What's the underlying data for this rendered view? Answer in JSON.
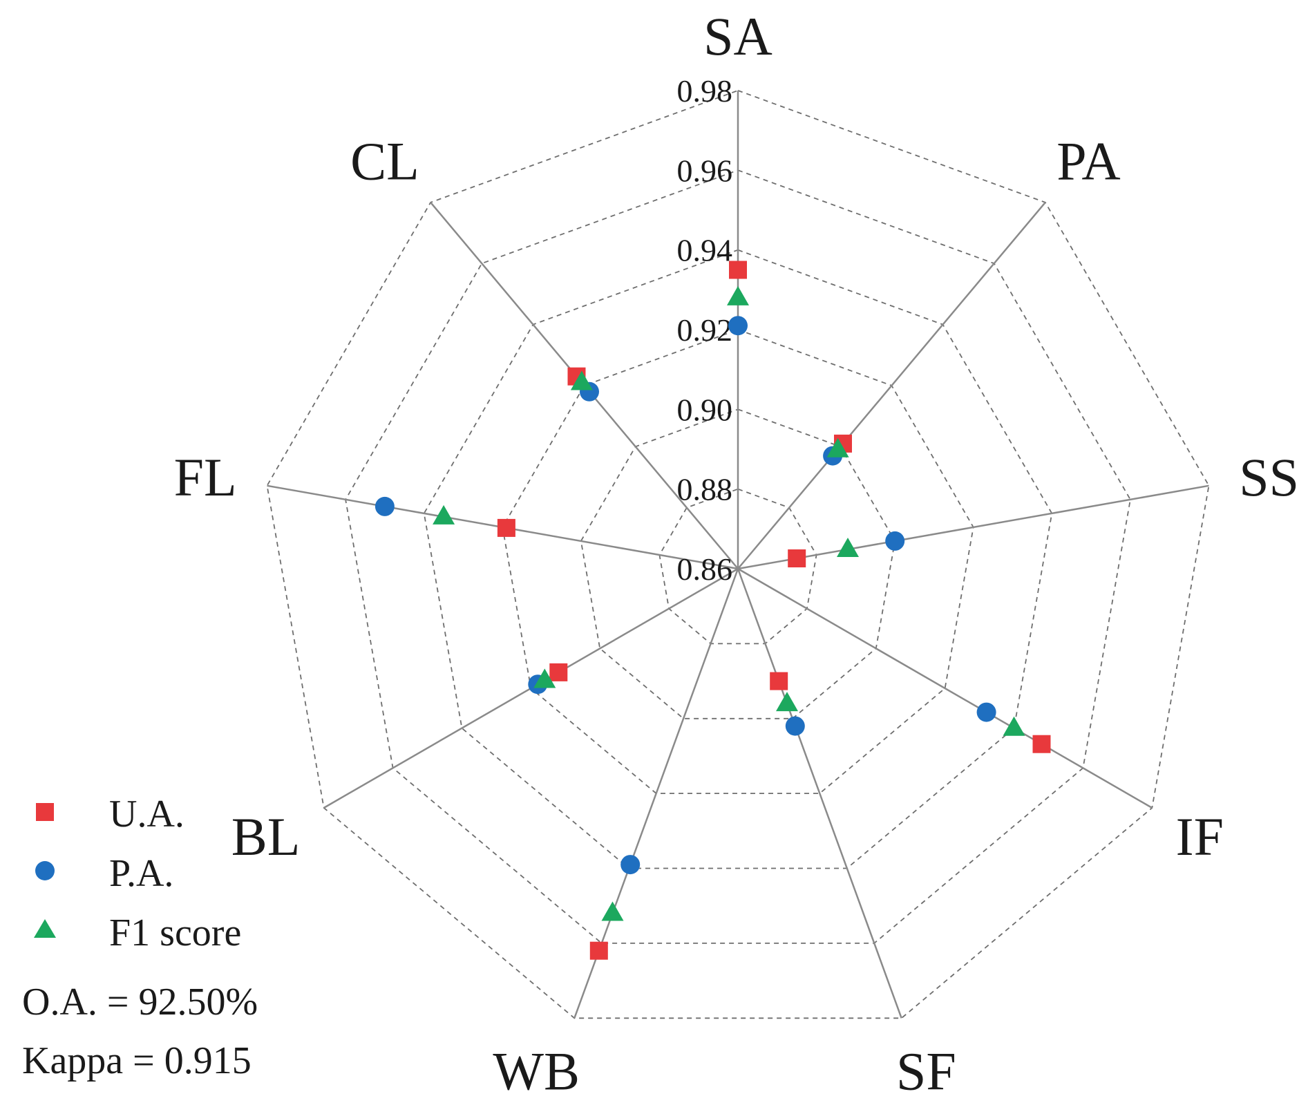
{
  "chart_data": {
    "type": "radar",
    "axes": [
      "SA",
      "PA",
      "SS",
      "IF",
      "SF",
      "WB",
      "BL",
      "FL",
      "CL"
    ],
    "range": [
      0.86,
      0.98
    ],
    "ticks": [
      "0.86",
      "0.88",
      "0.90",
      "0.92",
      "0.94",
      "0.96",
      "0.98"
    ],
    "tick_values": [
      0.86,
      0.88,
      0.9,
      0.92,
      0.94,
      0.96,
      0.98
    ],
    "grid": "dashed",
    "series": [
      {
        "name": "U.A.",
        "marker": "square",
        "color": "#e8393c",
        "values": [
          0.935,
          0.901,
          0.875,
          0.948,
          0.89,
          0.962,
          0.912,
          0.919,
          0.923
        ]
      },
      {
        "name": "P.A.",
        "marker": "circle",
        "color": "#1f6fc0",
        "values": [
          0.921,
          0.897,
          0.9,
          0.932,
          0.902,
          0.939,
          0.918,
          0.95,
          0.918
        ]
      },
      {
        "name": "F1 score",
        "marker": "triangle",
        "color": "#1ca85e",
        "values": [
          0.928,
          0.899,
          0.888,
          0.94,
          0.896,
          0.952,
          0.916,
          0.935,
          0.921
        ]
      }
    ],
    "legend": {
      "placement": "bottom-left",
      "labels": [
        "U.A.",
        "P.A.",
        "F1 score"
      ]
    },
    "annotations": [
      "O.A. = 92.50%",
      "Kappa = 0.915"
    ]
  }
}
